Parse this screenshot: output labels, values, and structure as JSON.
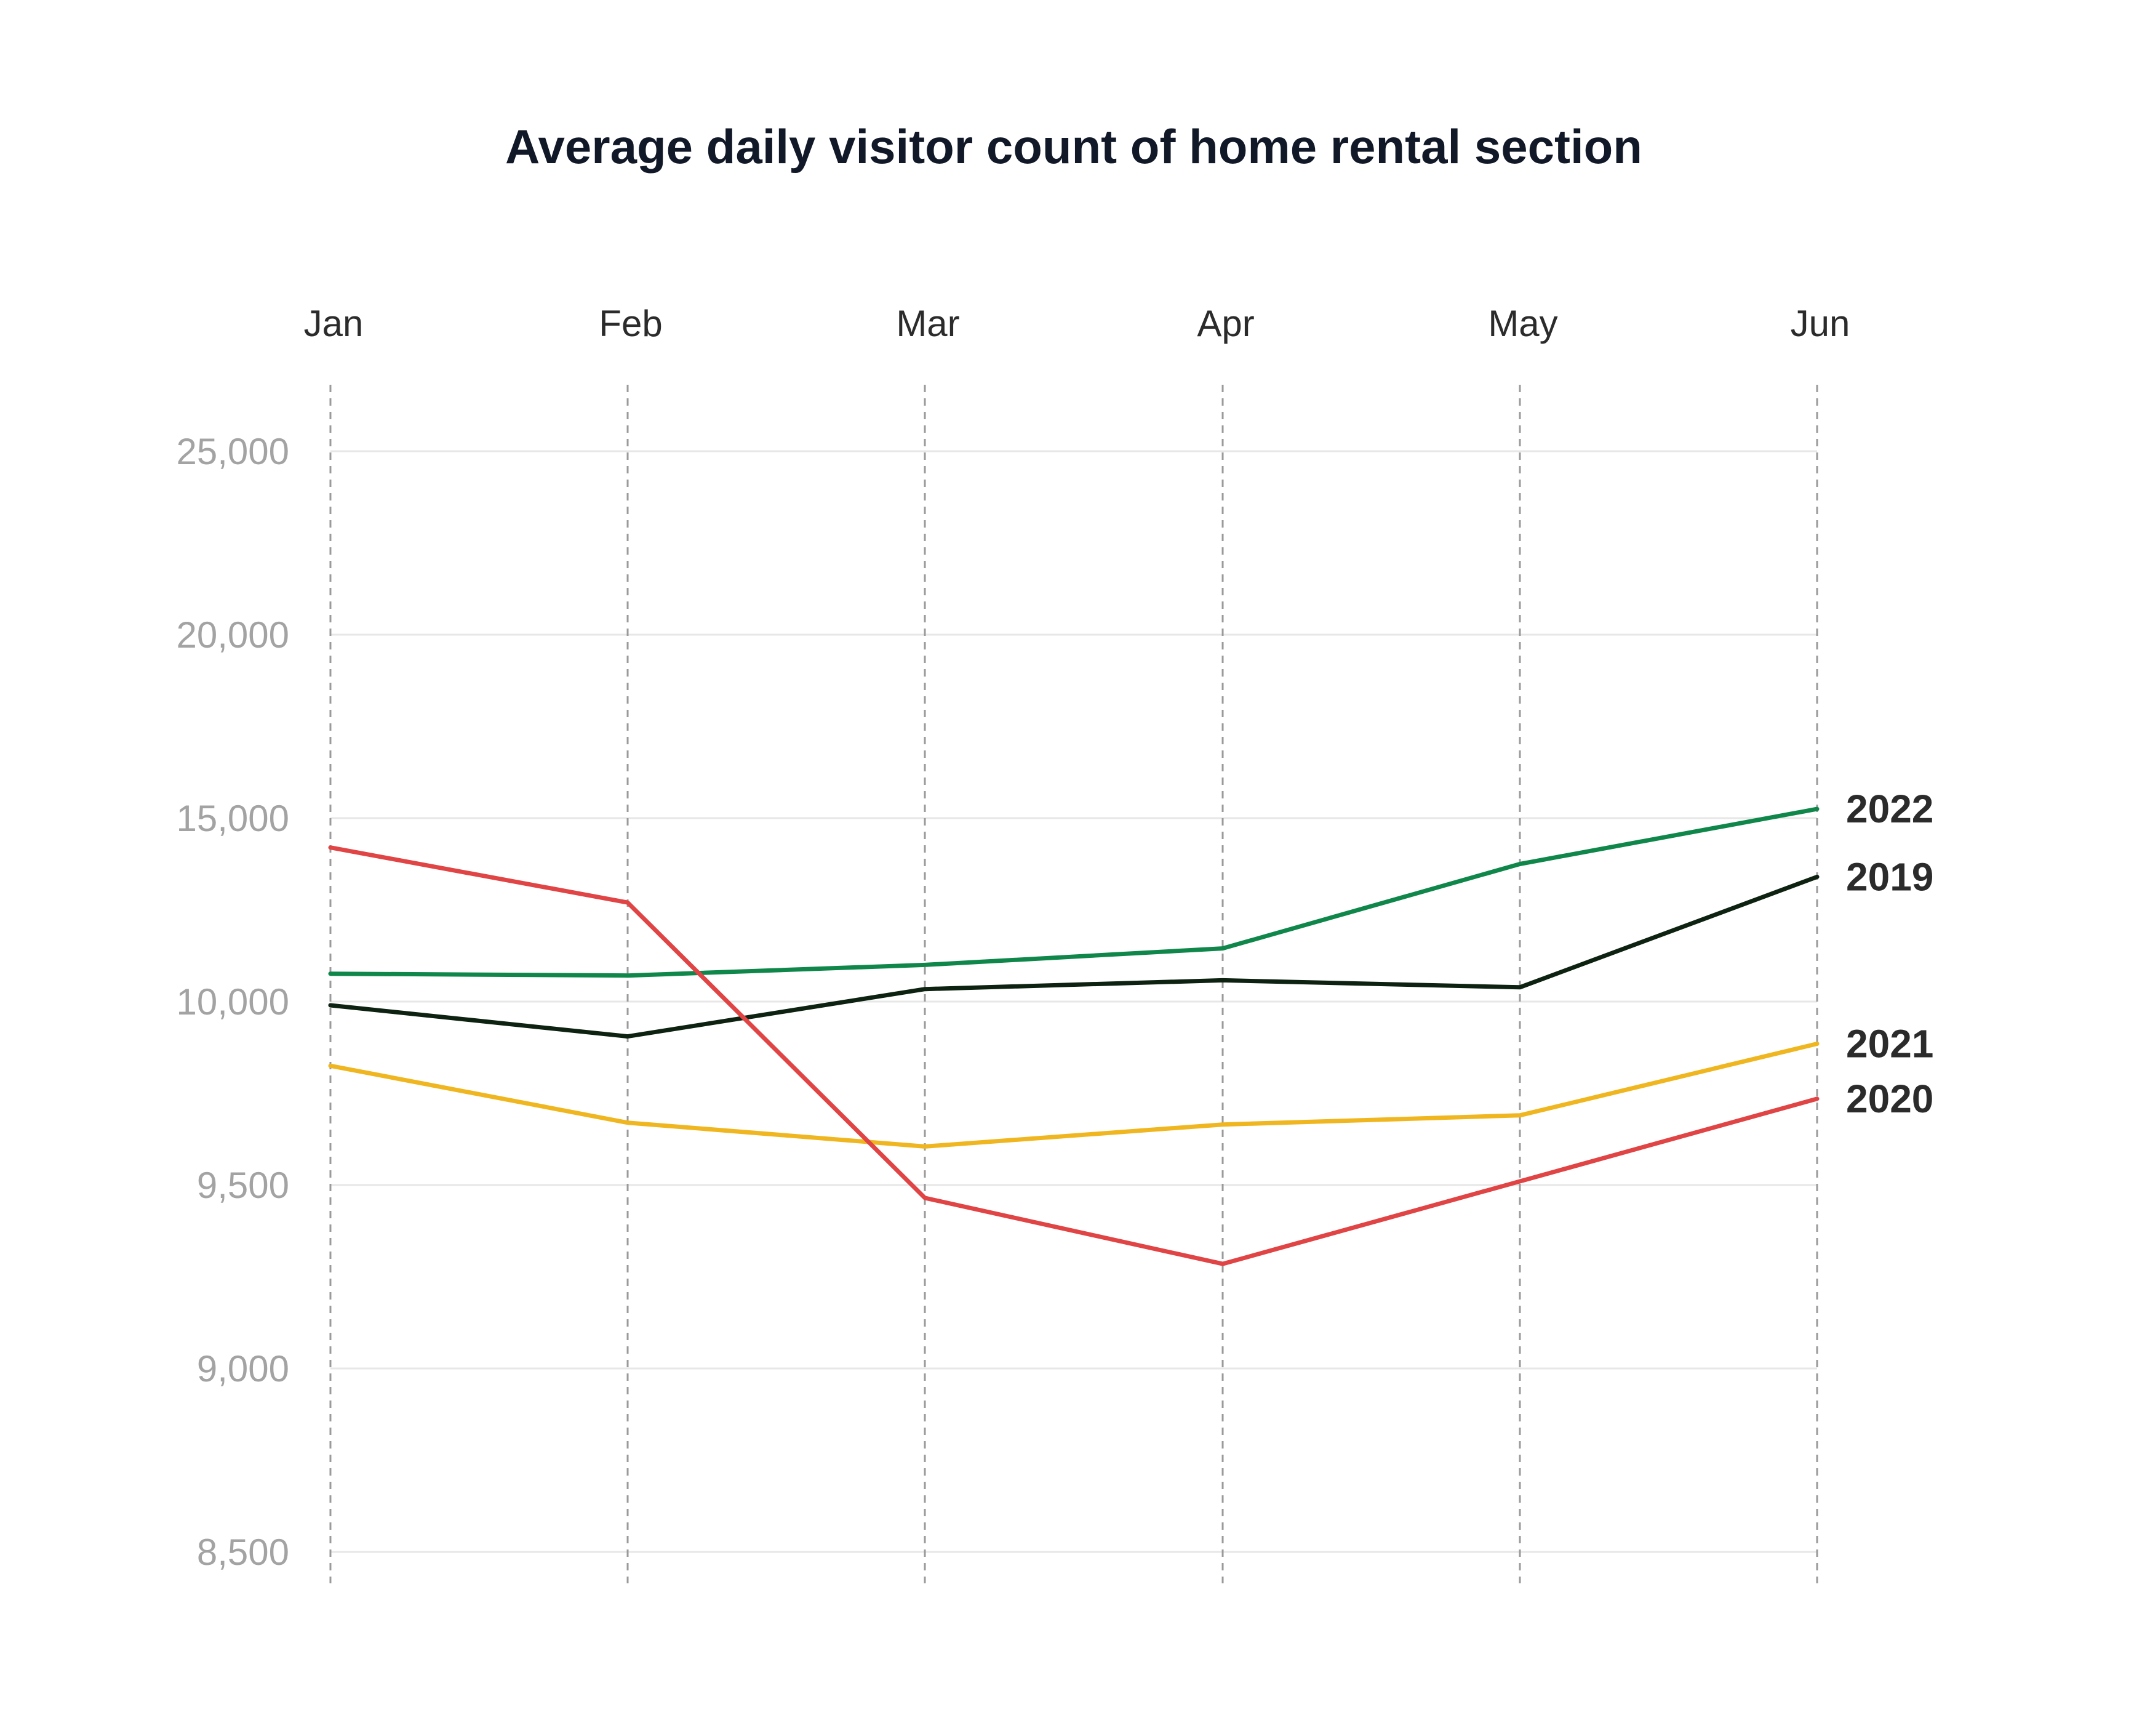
{
  "chart_data": {
    "type": "line",
    "title": "Average daily visitor count of home rental section",
    "xlabel": "",
    "ylabel": "",
    "categories": [
      "Jan",
      "Feb",
      "Mar",
      "Apr",
      "May",
      "Jun"
    ],
    "y_ticks": [
      "25,000",
      "20,000",
      "15,000",
      "10,000",
      "9,500",
      "9,000",
      "8,500"
    ],
    "y_scale": "non-uniform (breakpoints at listed ticks)",
    "grid": true,
    "legend": "inline labels at line ends (right)",
    "series": [
      {
        "name": "2022",
        "color": "#10874a",
        "values": [
          10760,
          10710,
          11000,
          11450,
          13750,
          15250
        ]
      },
      {
        "name": "2019",
        "color": "#0d2210",
        "values": [
          9990,
          9905,
          10340,
          10580,
          10390,
          13400
        ]
      },
      {
        "name": "2021",
        "color": "#efb61f",
        "values": [
          9825,
          9670,
          9605,
          9665,
          9690,
          9885
        ]
      },
      {
        "name": "2020",
        "color": "#e04444",
        "values": [
          14200,
          12700,
          9465,
          9285,
          9510,
          9735
        ]
      }
    ]
  }
}
